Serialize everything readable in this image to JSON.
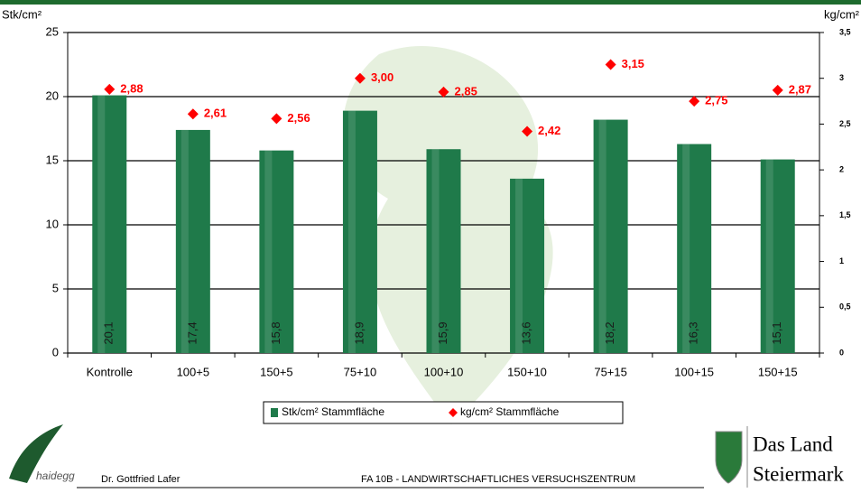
{
  "chart_data": {
    "type": "bar",
    "y_label": "Stk/cm²",
    "y2_label": "kg/cm²",
    "categories": [
      "Kontrolle",
      "100+5",
      "150+5",
      "75+10",
      "100+10",
      "150+10",
      "75+15",
      "100+15",
      "150+15"
    ],
    "series": [
      {
        "name": "Stk/cm² Stammfläche",
        "type": "bar",
        "color": "#1f7a4a",
        "values": [
          20.1,
          17.4,
          15.8,
          18.9,
          15.9,
          13.6,
          18.2,
          16.3,
          15.1
        ],
        "value_labels": [
          "20,1",
          "17,4",
          "15,8",
          "18,9",
          "15,9",
          "13,6",
          "18,2",
          "16,3",
          "15,1"
        ]
      },
      {
        "name": "kg/cm² Stammfläche",
        "type": "scatter",
        "axis": "y2",
        "color": "#ff0000",
        "values": [
          2.88,
          2.61,
          2.56,
          3.0,
          2.85,
          2.42,
          3.15,
          2.75,
          2.87
        ],
        "value_labels": [
          "2,88",
          "2,61",
          "2,56",
          "3,00",
          "2,85",
          "2,42",
          "3,15",
          "2,75",
          "2,87"
        ]
      }
    ],
    "ylim": [
      0,
      25
    ],
    "yticks": [
      0,
      5,
      10,
      15,
      20,
      25
    ],
    "y2lim": [
      0,
      3.5
    ],
    "y2ticks": [
      0,
      {
        "value": 0.5,
        "label": "0,5"
      },
      1,
      {
        "value": 1.5,
        "label": "1,5"
      },
      2,
      {
        "value": 2.5,
        "label": "2,5"
      },
      3,
      {
        "value": 3.5,
        "label": "3,5"
      }
    ],
    "grid": true,
    "legend": "bottom"
  },
  "footer": {
    "author": "Dr. Gottfried Lafer",
    "institute": "FA 10B - LANDWIRTSCHAFTLICHES VERSUCHSZENTRUM",
    "logo_left": "haidegg",
    "logo_right_line1": "Das Land",
    "logo_right_line2": "Steiermark"
  }
}
